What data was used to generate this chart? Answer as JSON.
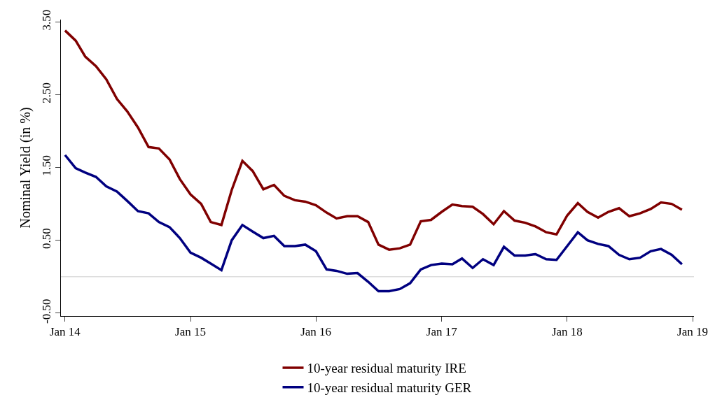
{
  "chart_data": {
    "type": "line",
    "ylabel": "Nominal Yield (in %)",
    "x": [
      "2014-01",
      "2014-02",
      "2014-03",
      "2014-04",
      "2014-05",
      "2014-06",
      "2014-07",
      "2014-08",
      "2014-09",
      "2014-10",
      "2014-11",
      "2014-12",
      "2015-01",
      "2015-02",
      "2015-03",
      "2015-04",
      "2015-05",
      "2015-06",
      "2015-07",
      "2015-08",
      "2015-09",
      "2015-10",
      "2015-11",
      "2015-12",
      "2016-01",
      "2016-02",
      "2016-03",
      "2016-04",
      "2016-05",
      "2016-06",
      "2016-07",
      "2016-08",
      "2016-09",
      "2016-10",
      "2016-11",
      "2016-12",
      "2017-01",
      "2017-02",
      "2017-03",
      "2017-04",
      "2017-05",
      "2017-06",
      "2017-07",
      "2017-08",
      "2017-09",
      "2017-10",
      "2017-11",
      "2017-12",
      "2018-01",
      "2018-02",
      "2018-03",
      "2018-04",
      "2018-05",
      "2018-06",
      "2018-07",
      "2018-08",
      "2018-09",
      "2018-10",
      "2018-11",
      "2018-12"
    ],
    "series": [
      {
        "name": "10-year residual maturity IRE",
        "color": "#800000",
        "values": [
          3.38,
          3.24,
          3.02,
          2.89,
          2.71,
          2.44,
          2.27,
          2.05,
          1.78,
          1.76,
          1.61,
          1.34,
          1.13,
          1.0,
          0.75,
          0.71,
          1.19,
          1.59,
          1.45,
          1.2,
          1.26,
          1.11,
          1.05,
          1.03,
          0.98,
          0.88,
          0.8,
          0.83,
          0.83,
          0.75,
          0.44,
          0.37,
          0.39,
          0.44,
          0.76,
          0.78,
          0.89,
          0.99,
          0.97,
          0.96,
          0.86,
          0.72,
          0.9,
          0.77,
          0.74,
          0.69,
          0.61,
          0.58,
          0.84,
          1.01,
          0.89,
          0.81,
          0.89,
          0.94,
          0.83,
          0.87,
          0.93,
          1.02,
          1.0,
          0.92
        ]
      },
      {
        "name": "10-year residual maturity GER",
        "color": "#000080",
        "values": [
          1.67,
          1.49,
          1.43,
          1.37,
          1.24,
          1.17,
          1.04,
          0.9,
          0.87,
          0.75,
          0.68,
          0.53,
          0.33,
          0.26,
          0.18,
          0.09,
          0.5,
          0.71,
          0.62,
          0.53,
          0.56,
          0.42,
          0.42,
          0.44,
          0.35,
          0.1,
          0.08,
          0.04,
          0.05,
          -0.07,
          -0.2,
          -0.2,
          -0.17,
          -0.09,
          0.1,
          0.16,
          0.18,
          0.17,
          0.25,
          0.12,
          0.24,
          0.16,
          0.41,
          0.29,
          0.29,
          0.31,
          0.24,
          0.23,
          0.42,
          0.61,
          0.5,
          0.45,
          0.42,
          0.3,
          0.24,
          0.26,
          0.35,
          0.38,
          0.3,
          0.17
        ]
      }
    ],
    "xlim": [
      "2013-12-20",
      "2019-01-05"
    ],
    "xticks": [
      {
        "value": "2014-01-01",
        "label": "Jan 14"
      },
      {
        "value": "2015-01-01",
        "label": "Jan 15"
      },
      {
        "value": "2016-01-01",
        "label": "Jan 16"
      },
      {
        "value": "2017-01-01",
        "label": "Jan 17"
      },
      {
        "value": "2018-01-01",
        "label": "Jan 18"
      },
      {
        "value": "2019-01-01",
        "label": "Jan 19"
      }
    ],
    "ylim": [
      -0.54,
      3.53
    ],
    "yticks": [
      {
        "value": -0.5,
        "label": "-0.50"
      },
      {
        "value": 0.5,
        "label": "0.50"
      },
      {
        "value": 1.5,
        "label": "1.50"
      },
      {
        "value": 2.5,
        "label": "2.50"
      },
      {
        "value": 3.5,
        "label": "3.50"
      }
    ],
    "ref_lines": [
      {
        "axis": "y",
        "value": 0,
        "color": "#dddddd"
      }
    ],
    "grid": false,
    "legend": "bottom",
    "line_style": "solid",
    "marker": "none"
  }
}
